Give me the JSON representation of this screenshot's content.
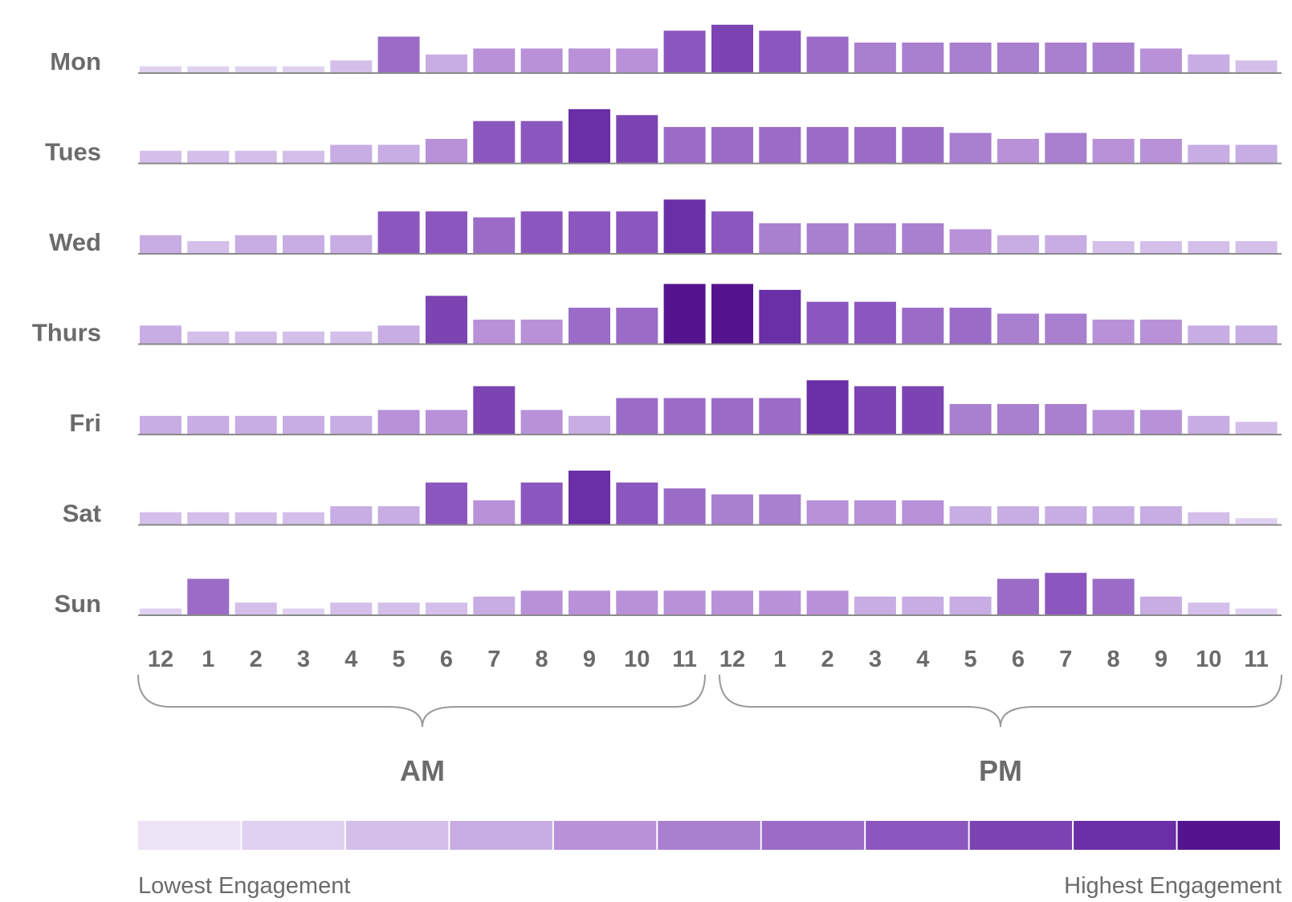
{
  "chart_data": {
    "type": "bar",
    "rows": [
      "Mon",
      "Tues",
      "Wed",
      "Thurs",
      "Fri",
      "Sat",
      "Sun"
    ],
    "categories": [
      "12",
      "1",
      "2",
      "3",
      "4",
      "5",
      "6",
      "7",
      "8",
      "9",
      "10",
      "11",
      "12",
      "1",
      "2",
      "3",
      "4",
      "5",
      "6",
      "7",
      "8",
      "9",
      "10",
      "11"
    ],
    "periods": [
      "AM",
      "PM"
    ],
    "legend": {
      "low_label": "Lowest Engagement",
      "high_label": "Highest Engagement",
      "levels": 11,
      "colors": [
        "#ece3f6",
        "#e0d1f1",
        "#d4bfea",
        "#c7ade3",
        "#b891d9",
        "#a97fd0",
        "#9a6cc7",
        "#8c56bf",
        "#7c44b2",
        "#6a2ea6",
        "#55148f"
      ]
    },
    "series": [
      {
        "name": "Mon",
        "values": [
          1,
          1,
          1,
          1,
          2,
          6,
          3,
          4,
          4,
          4,
          4,
          7,
          8,
          7,
          6,
          5,
          5,
          5,
          5,
          5,
          5,
          4,
          3,
          2
        ]
      },
      {
        "name": "Tues",
        "values": [
          2,
          2,
          2,
          2,
          3,
          3,
          4,
          7,
          7,
          9,
          8,
          6,
          6,
          6,
          6,
          6,
          6,
          5,
          4,
          5,
          4,
          4,
          3,
          3
        ]
      },
      {
        "name": "Wed",
        "values": [
          3,
          2,
          3,
          3,
          3,
          7,
          7,
          6,
          7,
          7,
          7,
          9,
          7,
          5,
          5,
          5,
          5,
          4,
          3,
          3,
          2,
          2,
          2,
          2
        ]
      },
      {
        "name": "Thurs",
        "values": [
          3,
          2,
          2,
          2,
          2,
          3,
          8,
          4,
          4,
          6,
          6,
          10,
          10,
          9,
          7,
          7,
          6,
          6,
          5,
          5,
          4,
          4,
          3,
          3
        ]
      },
      {
        "name": "Fri",
        "values": [
          3,
          3,
          3,
          3,
          3,
          4,
          4,
          8,
          4,
          3,
          6,
          6,
          6,
          6,
          9,
          8,
          8,
          5,
          5,
          5,
          4,
          4,
          3,
          2
        ]
      },
      {
        "name": "Sat",
        "values": [
          2,
          2,
          2,
          2,
          3,
          3,
          7,
          4,
          7,
          9,
          7,
          6,
          5,
          5,
          4,
          4,
          4,
          3,
          3,
          3,
          3,
          3,
          2,
          1
        ]
      },
      {
        "name": "Sun",
        "values": [
          1,
          6,
          2,
          1,
          2,
          2,
          2,
          3,
          4,
          4,
          4,
          4,
          4,
          4,
          4,
          3,
          3,
          3,
          6,
          7,
          6,
          3,
          2,
          1
        ]
      }
    ]
  }
}
